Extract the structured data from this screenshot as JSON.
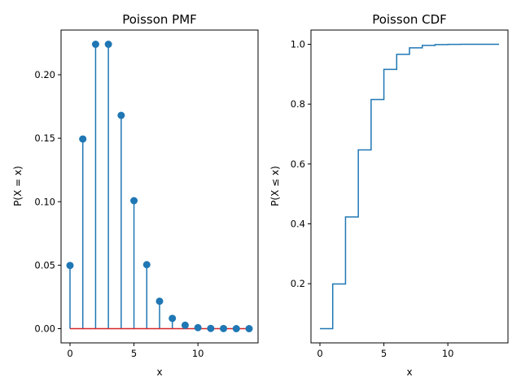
{
  "chart_data": [
    {
      "type": "stem",
      "title": "Poisson PMF",
      "xlabel": "x",
      "ylabel": "P(X = x)",
      "x": [
        0,
        1,
        2,
        3,
        4,
        5,
        6,
        7,
        8,
        9,
        10,
        11,
        12,
        13,
        14
      ],
      "y": [
        0.0498,
        0.1494,
        0.224,
        0.224,
        0.168,
        0.1008,
        0.0504,
        0.0216,
        0.0081,
        0.0027,
        0.0008,
        0.0002,
        0.0001,
        0.0,
        0.0
      ],
      "xlim": [
        -0.7,
        14.7
      ],
      "ylim": [
        -0.0112,
        0.2352
      ],
      "xticks": [
        0,
        5,
        10
      ],
      "yticks": [
        0.0,
        0.05,
        0.1,
        0.15,
        0.2
      ],
      "xtick_labels": [
        "0",
        "5",
        "10"
      ],
      "ytick_labels": [
        "0.00",
        "0.05",
        "0.10",
        "0.15",
        "0.20"
      ],
      "stem_color": "#1f77b4",
      "baseline_color": "#d62728",
      "grid": false,
      "legend": false
    },
    {
      "type": "step",
      "title": "Poisson CDF",
      "xlabel": "x",
      "ylabel": "P(X ≤ x)",
      "x": [
        0,
        1,
        2,
        3,
        4,
        5,
        6,
        7,
        8,
        9,
        10,
        11,
        12,
        13,
        14
      ],
      "y": [
        0.0498,
        0.1991,
        0.4232,
        0.6472,
        0.8153,
        0.9161,
        0.9665,
        0.9881,
        0.9962,
        0.9989,
        0.9997,
        0.9999,
        1.0,
        1.0,
        1.0
      ],
      "step_where": "post",
      "xlim": [
        -0.7,
        14.7
      ],
      "ylim": [
        0.0023,
        1.0475
      ],
      "xticks": [
        0,
        5,
        10
      ],
      "yticks": [
        0.2,
        0.4,
        0.6,
        0.8,
        1.0
      ],
      "xtick_labels": [
        "0",
        "5",
        "10"
      ],
      "ytick_labels": [
        "0.2",
        "0.4",
        "0.6",
        "0.8",
        "1.0"
      ],
      "line_color": "#1f77b4",
      "grid": false,
      "legend": false
    }
  ]
}
